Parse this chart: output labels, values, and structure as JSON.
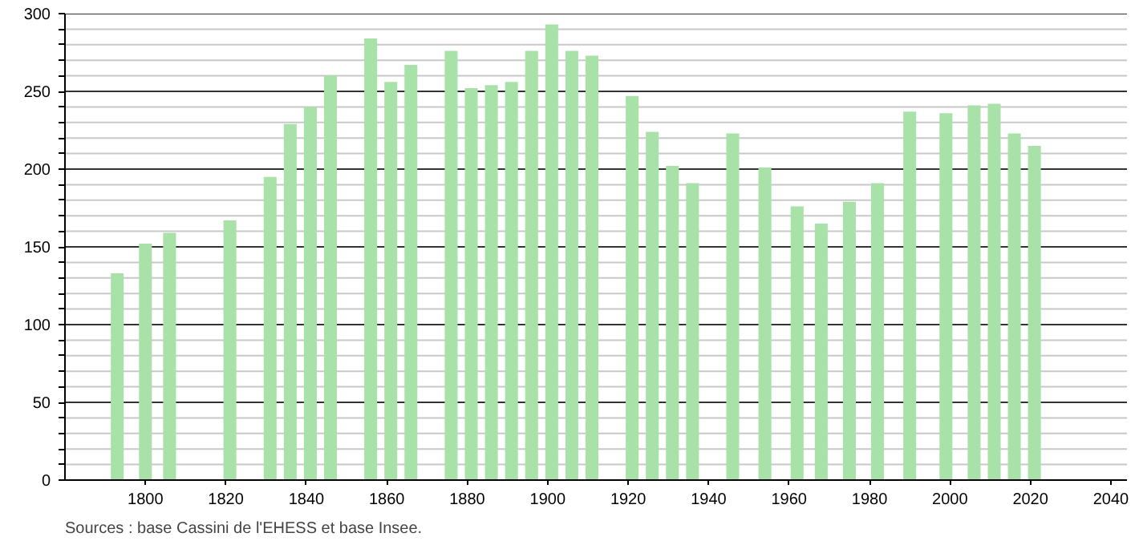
{
  "chart_data": {
    "type": "bar",
    "x": [
      1793,
      1800,
      1806,
      1821,
      1831,
      1836,
      1841,
      1846,
      1856,
      1861,
      1866,
      1876,
      1881,
      1886,
      1891,
      1896,
      1901,
      1906,
      1911,
      1921,
      1926,
      1931,
      1936,
      1946,
      1954,
      1962,
      1968,
      1975,
      1982,
      1990,
      1999,
      2006,
      2011,
      2016,
      2021
    ],
    "values": [
      133,
      152,
      159,
      167,
      195,
      229,
      240,
      260,
      284,
      256,
      267,
      276,
      252,
      254,
      256,
      276,
      293,
      276,
      273,
      247,
      224,
      202,
      191,
      223,
      201,
      176,
      165,
      179,
      191,
      237,
      236,
      241,
      242,
      223,
      215
    ],
    "color": "#a8e2a8",
    "xlim": [
      1780,
      2044
    ],
    "xticks": [
      1800,
      1820,
      1840,
      1860,
      1880,
      1900,
      1920,
      1940,
      1960,
      1980,
      2000,
      2020,
      2040
    ],
    "ylim": [
      0,
      300
    ],
    "yticks": [
      0,
      {
        "value": 10,
        "label": null
      },
      {
        "value": 20,
        "label": null
      },
      {
        "value": 30,
        "label": null
      },
      {
        "value": 40,
        "label": null
      },
      50,
      {
        "value": 60,
        "label": null
      },
      {
        "value": 70,
        "label": null
      },
      {
        "value": 80,
        "label": null
      },
      {
        "value": 90,
        "label": null
      },
      100,
      {
        "value": 110,
        "label": null
      },
      {
        "value": 120,
        "label": null
      },
      {
        "value": 130,
        "label": null
      },
      {
        "value": 140,
        "label": null
      },
      150,
      {
        "value": 160,
        "label": null
      },
      {
        "value": 170,
        "label": null
      },
      {
        "value": 180,
        "label": null
      },
      {
        "value": 190,
        "label": null
      },
      200,
      {
        "value": 210,
        "label": null
      },
      {
        "value": 220,
        "label": null
      },
      {
        "value": 230,
        "label": null
      },
      {
        "value": 240,
        "label": null
      },
      250,
      {
        "value": 260,
        "label": null
      },
      {
        "value": 270,
        "label": null
      },
      {
        "value": 280,
        "label": null
      },
      {
        "value": 290,
        "label": null
      },
      300
    ],
    "grid": "y",
    "annotations": [
      "Sources : base Cassini de l'EHESS et base Insee."
    ]
  }
}
